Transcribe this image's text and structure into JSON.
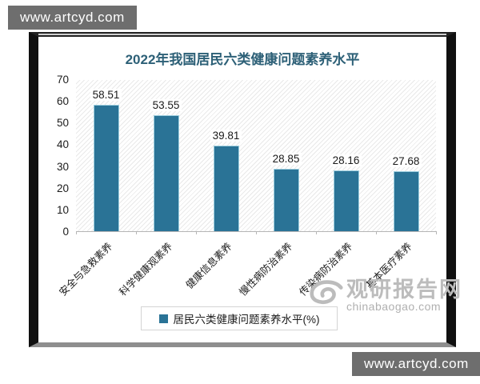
{
  "watermarks": {
    "top_left": "www.artcyd.com",
    "bottom_right": "www.artcyd.com",
    "site_name": "观研报告网",
    "site_url": "chinabaogao.com"
  },
  "chart_data": {
    "type": "bar",
    "title": "2022年我国居民六类健康问题素养水平",
    "categories": [
      "安全与急救素养",
      "科学健康观素养",
      "健康信息素养",
      "慢性病防治素养",
      "传染病防治素养",
      "基本医疗素养"
    ],
    "values": [
      58.51,
      53.55,
      39.81,
      28.85,
      28.16,
      27.68
    ],
    "legend": "居民六类健康问题素养水平(%)",
    "xlabel": "",
    "ylabel": "",
    "ylim": [
      0,
      70
    ],
    "yticks": [
      70,
      60,
      50,
      40,
      30,
      20,
      10,
      0
    ],
    "grid": false,
    "legend_position": "bottom",
    "bar_color": "#2A7396",
    "bar_edge_color": "#9ecfdf",
    "title_color": "#2d6077",
    "plot_hatch": "diagonal"
  }
}
